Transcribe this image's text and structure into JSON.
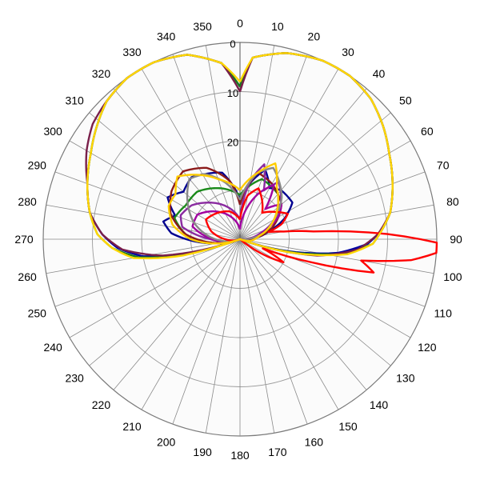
{
  "chart_data": {
    "type": "polar-line",
    "angular_axis": {
      "direction": "clockwise",
      "zero_at": "top",
      "step": 10,
      "tick_labels": [
        "0",
        "10",
        "20",
        "30",
        "40",
        "50",
        "60",
        "70",
        "80",
        "90",
        "100",
        "110",
        "120",
        "130",
        "140",
        "150",
        "160",
        "170",
        "180",
        "190",
        "200",
        "210",
        "220",
        "230",
        "240",
        "250",
        "260",
        "270",
        "280",
        "290",
        "300",
        "310",
        "320",
        "330",
        "340",
        "350"
      ]
    },
    "radial_axis": {
      "outer_value": 0,
      "inner_value": 40,
      "visible_tick_labels": [
        "0",
        "10",
        "20"
      ],
      "rings": [
        0,
        10,
        20,
        30
      ]
    },
    "series": [
      {
        "color": "#0000a0",
        "points": [
          [
            0,
            9
          ],
          [
            4,
            3
          ],
          [
            14,
            1
          ],
          [
            25,
            0
          ],
          [
            34,
            0
          ],
          [
            43,
            1
          ],
          [
            52,
            3
          ],
          [
            60,
            5
          ],
          [
            70,
            7
          ],
          [
            80,
            9
          ],
          [
            86,
            11
          ],
          [
            92,
            14
          ],
          [
            98,
            20
          ],
          [
            104,
            30
          ],
          [
            110,
            40
          ],
          [
            250,
            40
          ],
          [
            254,
            30
          ],
          [
            260,
            20
          ],
          [
            266,
            15
          ],
          [
            272,
            12
          ],
          [
            280,
            9
          ],
          [
            290,
            7
          ],
          [
            300,
            5
          ],
          [
            308,
            3
          ],
          [
            316,
            1
          ],
          [
            325,
            0
          ],
          [
            334,
            0
          ],
          [
            344,
            1
          ],
          [
            354,
            4
          ],
          [
            360,
            9
          ]
        ]
      },
      {
        "color": "#000090",
        "points": [
          [
            0,
            32
          ],
          [
            20,
            25
          ],
          [
            30,
            28
          ],
          [
            40,
            27
          ],
          [
            55,
            27
          ],
          [
            65,
            30
          ],
          [
            75,
            34
          ],
          [
            90,
            38
          ],
          [
            110,
            40
          ],
          [
            250,
            40
          ],
          [
            262,
            34
          ],
          [
            275,
            26
          ],
          [
            283,
            24
          ],
          [
            290,
            26
          ],
          [
            300,
            23
          ],
          [
            310,
            25
          ],
          [
            322,
            24
          ],
          [
            332,
            25
          ],
          [
            345,
            26
          ],
          [
            360,
            32
          ]
        ]
      },
      {
        "color": "#1a7a1a",
        "points": [
          [
            0,
            9
          ],
          [
            4,
            3
          ],
          [
            14,
            1
          ],
          [
            25,
            0
          ],
          [
            34,
            0
          ],
          [
            43,
            1
          ],
          [
            52,
            3
          ],
          [
            60,
            5
          ],
          [
            70,
            7
          ],
          [
            80,
            9
          ],
          [
            86,
            11
          ],
          [
            92,
            13
          ],
          [
            98,
            19
          ],
          [
            104,
            29
          ],
          [
            110,
            40
          ],
          [
            250,
            40
          ],
          [
            254,
            29
          ],
          [
            260,
            19
          ],
          [
            266,
            14
          ],
          [
            272,
            11
          ],
          [
            280,
            9
          ],
          [
            290,
            7
          ],
          [
            300,
            5
          ],
          [
            308,
            3
          ],
          [
            316,
            1
          ],
          [
            325,
            0
          ],
          [
            334,
            0
          ],
          [
            344,
            1
          ],
          [
            354,
            4
          ],
          [
            360,
            9
          ]
        ]
      },
      {
        "color": "#1a8a1a",
        "points": [
          [
            0,
            31
          ],
          [
            20,
            27
          ],
          [
            40,
            28
          ],
          [
            60,
            32
          ],
          [
            90,
            38
          ],
          [
            110,
            40
          ],
          [
            250,
            40
          ],
          [
            270,
            30
          ],
          [
            288,
            26
          ],
          [
            302,
            27
          ],
          [
            318,
            27
          ],
          [
            340,
            29
          ],
          [
            360,
            31
          ]
        ]
      },
      {
        "color": "#7a1f4a",
        "points": [
          [
            0,
            10
          ],
          [
            4,
            3
          ],
          [
            14,
            1
          ],
          [
            25,
            0
          ],
          [
            34,
            0
          ],
          [
            43,
            1
          ],
          [
            52,
            3
          ],
          [
            60,
            5
          ],
          [
            70,
            7
          ],
          [
            80,
            9
          ],
          [
            88,
            12
          ],
          [
            95,
            16
          ],
          [
            102,
            24
          ],
          [
            110,
            40
          ],
          [
            250,
            40
          ],
          [
            258,
            24
          ],
          [
            265,
            16
          ],
          [
            272,
            12
          ],
          [
            280,
            9
          ],
          [
            290,
            7
          ],
          [
            300,
            4
          ],
          [
            308,
            2
          ],
          [
            316,
            1
          ],
          [
            325,
            0
          ],
          [
            334,
            0
          ],
          [
            344,
            1
          ],
          [
            354,
            4
          ],
          [
            360,
            10
          ]
        ]
      },
      {
        "color": "#8b1a1a",
        "points": [
          [
            0,
            33
          ],
          [
            15,
            26
          ],
          [
            30,
            27
          ],
          [
            50,
            29
          ],
          [
            70,
            33
          ],
          [
            90,
            38
          ],
          [
            110,
            40
          ],
          [
            250,
            40
          ],
          [
            275,
            29
          ],
          [
            290,
            25
          ],
          [
            305,
            23
          ],
          [
            320,
            22
          ],
          [
            335,
            24
          ],
          [
            350,
            28
          ],
          [
            360,
            33
          ]
        ]
      },
      {
        "color": "#8a2ba0",
        "points": [
          [
            0,
            36
          ],
          [
            10,
            28
          ],
          [
            18,
            24
          ],
          [
            26,
            29
          ],
          [
            34,
            26
          ],
          [
            44,
            28
          ],
          [
            54,
            30
          ],
          [
            64,
            33
          ],
          [
            75,
            36
          ],
          [
            90,
            39
          ],
          [
            110,
            40
          ],
          [
            250,
            40
          ],
          [
            270,
            34
          ],
          [
            282,
            28
          ],
          [
            292,
            27
          ],
          [
            305,
            28
          ],
          [
            318,
            30
          ],
          [
            332,
            32
          ],
          [
            346,
            34
          ],
          [
            360,
            36
          ]
        ]
      },
      {
        "color": "#a000a0",
        "points": [
          [
            0,
            38
          ],
          [
            22,
            30
          ],
          [
            32,
            27
          ],
          [
            40,
            32
          ],
          [
            50,
            29
          ],
          [
            60,
            31
          ],
          [
            72,
            35
          ],
          [
            90,
            39
          ],
          [
            110,
            40
          ],
          [
            250,
            40
          ],
          [
            268,
            35
          ],
          [
            285,
            30
          ],
          [
            300,
            30
          ],
          [
            315,
            32
          ],
          [
            330,
            34
          ],
          [
            345,
            36
          ],
          [
            360,
            38
          ]
        ]
      },
      {
        "color": "#888888",
        "points": [
          [
            0,
            32
          ],
          [
            15,
            26
          ],
          [
            25,
            24
          ],
          [
            35,
            26
          ],
          [
            45,
            28
          ],
          [
            60,
            32
          ],
          [
            75,
            35
          ],
          [
            90,
            39
          ],
          [
            110,
            40
          ],
          [
            250,
            40
          ],
          [
            270,
            35
          ],
          [
            290,
            30
          ],
          [
            310,
            26
          ],
          [
            320,
            24
          ],
          [
            332,
            25
          ],
          [
            345,
            28
          ],
          [
            360,
            32
          ]
        ]
      },
      {
        "color": "#ff0000",
        "points": [
          [
            0,
            36
          ],
          [
            10,
            31
          ],
          [
            20,
            29
          ],
          [
            30,
            31
          ],
          [
            40,
            33
          ],
          [
            52,
            31
          ],
          [
            62,
            29
          ],
          [
            70,
            31
          ],
          [
            76,
            34
          ],
          [
            80,
            31
          ],
          [
            84,
            25
          ],
          [
            88,
            10
          ],
          [
            91,
            0
          ],
          [
            94,
            0
          ],
          [
            97,
            5
          ],
          [
            100,
            15
          ],
          [
            104,
            12
          ],
          [
            108,
            25
          ],
          [
            112,
            35
          ],
          [
            118,
            30
          ],
          [
            124,
            35
          ],
          [
            130,
            40
          ],
          [
            250,
            40
          ],
          [
            270,
            37
          ],
          [
            285,
            34
          ],
          [
            300,
            32
          ],
          [
            320,
            33
          ],
          [
            340,
            34
          ],
          [
            360,
            36
          ]
        ]
      },
      {
        "color": "#ffd700",
        "points": [
          [
            0,
            8
          ],
          [
            4,
            3
          ],
          [
            14,
            1
          ],
          [
            25,
            0
          ],
          [
            34,
            0
          ],
          [
            43,
            1
          ],
          [
            52,
            3
          ],
          [
            60,
            5
          ],
          [
            70,
            7
          ],
          [
            80,
            9
          ],
          [
            86,
            11
          ],
          [
            92,
            13
          ],
          [
            98,
            18
          ],
          [
            104,
            28
          ],
          [
            110,
            40
          ],
          [
            250,
            40
          ],
          [
            254,
            28
          ],
          [
            260,
            18
          ],
          [
            266,
            14
          ],
          [
            272,
            11
          ],
          [
            280,
            9
          ],
          [
            290,
            7
          ],
          [
            300,
            5
          ],
          [
            308,
            3
          ],
          [
            316,
            1
          ],
          [
            325,
            0
          ],
          [
            334,
            0
          ],
          [
            344,
            1
          ],
          [
            354,
            4
          ],
          [
            360,
            8
          ]
        ]
      },
      {
        "color": "#ffcc00",
        "points": [
          [
            0,
            30
          ],
          [
            15,
            26
          ],
          [
            25,
            23
          ],
          [
            35,
            27
          ],
          [
            45,
            29
          ],
          [
            60,
            32
          ],
          [
            80,
            36
          ],
          [
            100,
            38
          ],
          [
            110,
            40
          ],
          [
            250,
            40
          ],
          [
            270,
            30
          ],
          [
            282,
            26
          ],
          [
            295,
            24
          ],
          [
            305,
            24
          ],
          [
            315,
            22
          ],
          [
            325,
            24
          ],
          [
            340,
            27
          ],
          [
            360,
            30
          ]
        ]
      }
    ]
  }
}
